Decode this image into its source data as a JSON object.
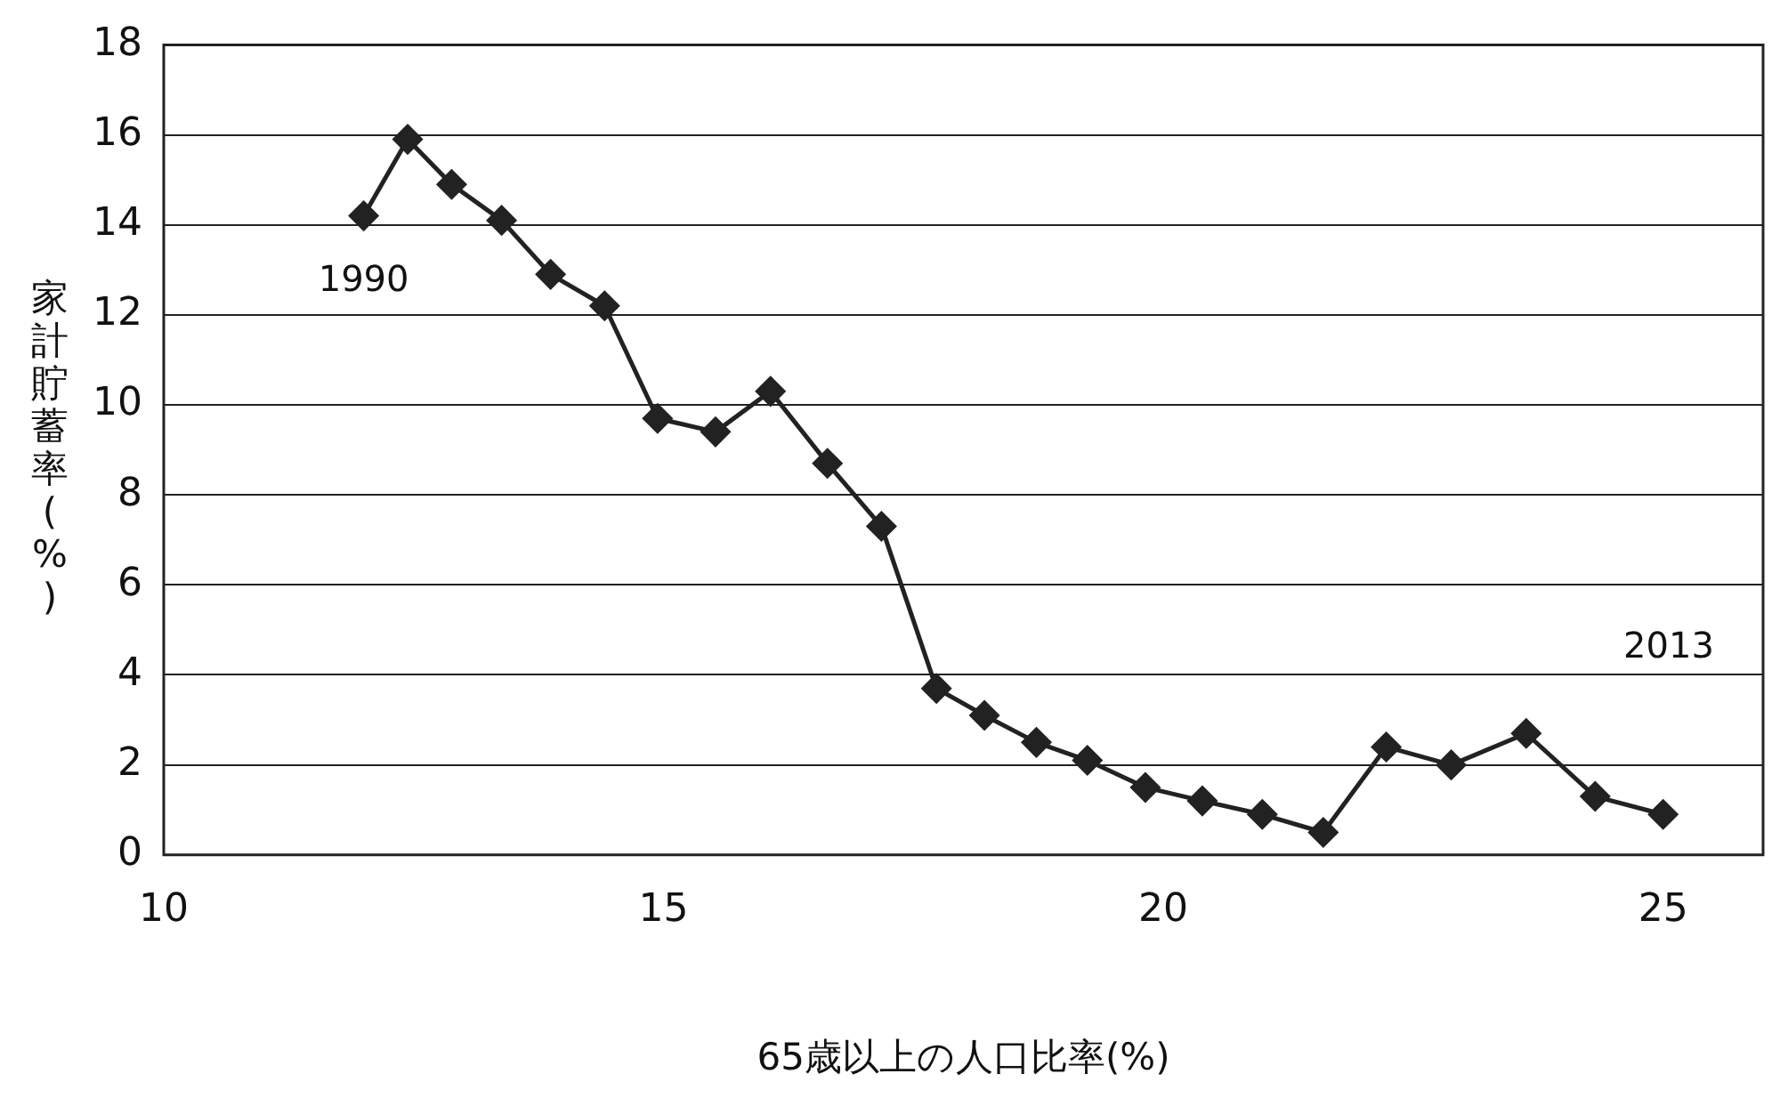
{
  "chart_data": {
    "type": "line",
    "xlabel": "65歳以上の人口比率(%)",
    "ylabel": "家計貯蓄率(%)",
    "x": [
      12.0,
      12.44,
      12.88,
      13.38,
      13.87,
      14.41,
      14.94,
      15.52,
      16.07,
      16.64,
      17.18,
      17.73,
      18.21,
      18.73,
      19.24,
      19.82,
      20.39,
      20.99,
      21.6,
      22.23,
      22.88,
      23.63,
      24.32,
      25.0
    ],
    "series": [
      {
        "color": "#222222",
        "values": [
          14.2,
          15.9,
          14.9,
          14.1,
          12.9,
          12.2,
          9.7,
          9.4,
          10.3,
          8.7,
          7.3,
          3.7,
          3.1,
          2.5,
          2.1,
          1.5,
          1.2,
          0.9,
          0.5,
          2.4,
          2.0,
          2.7,
          1.3,
          0.9
        ]
      }
    ],
    "xlim": [
      10,
      26
    ],
    "xticks": [
      10,
      15,
      20,
      25
    ],
    "ylim": [
      0,
      18
    ],
    "yticks": [
      0,
      2,
      4,
      6,
      8,
      10,
      12,
      14,
      16,
      18
    ],
    "grid": "y",
    "marker": "diamond",
    "line_style": "solid",
    "legend": false,
    "annotations": [
      {
        "text": "1990",
        "x": 12.0,
        "y": 14.2
      },
      "2013"
    ]
  }
}
